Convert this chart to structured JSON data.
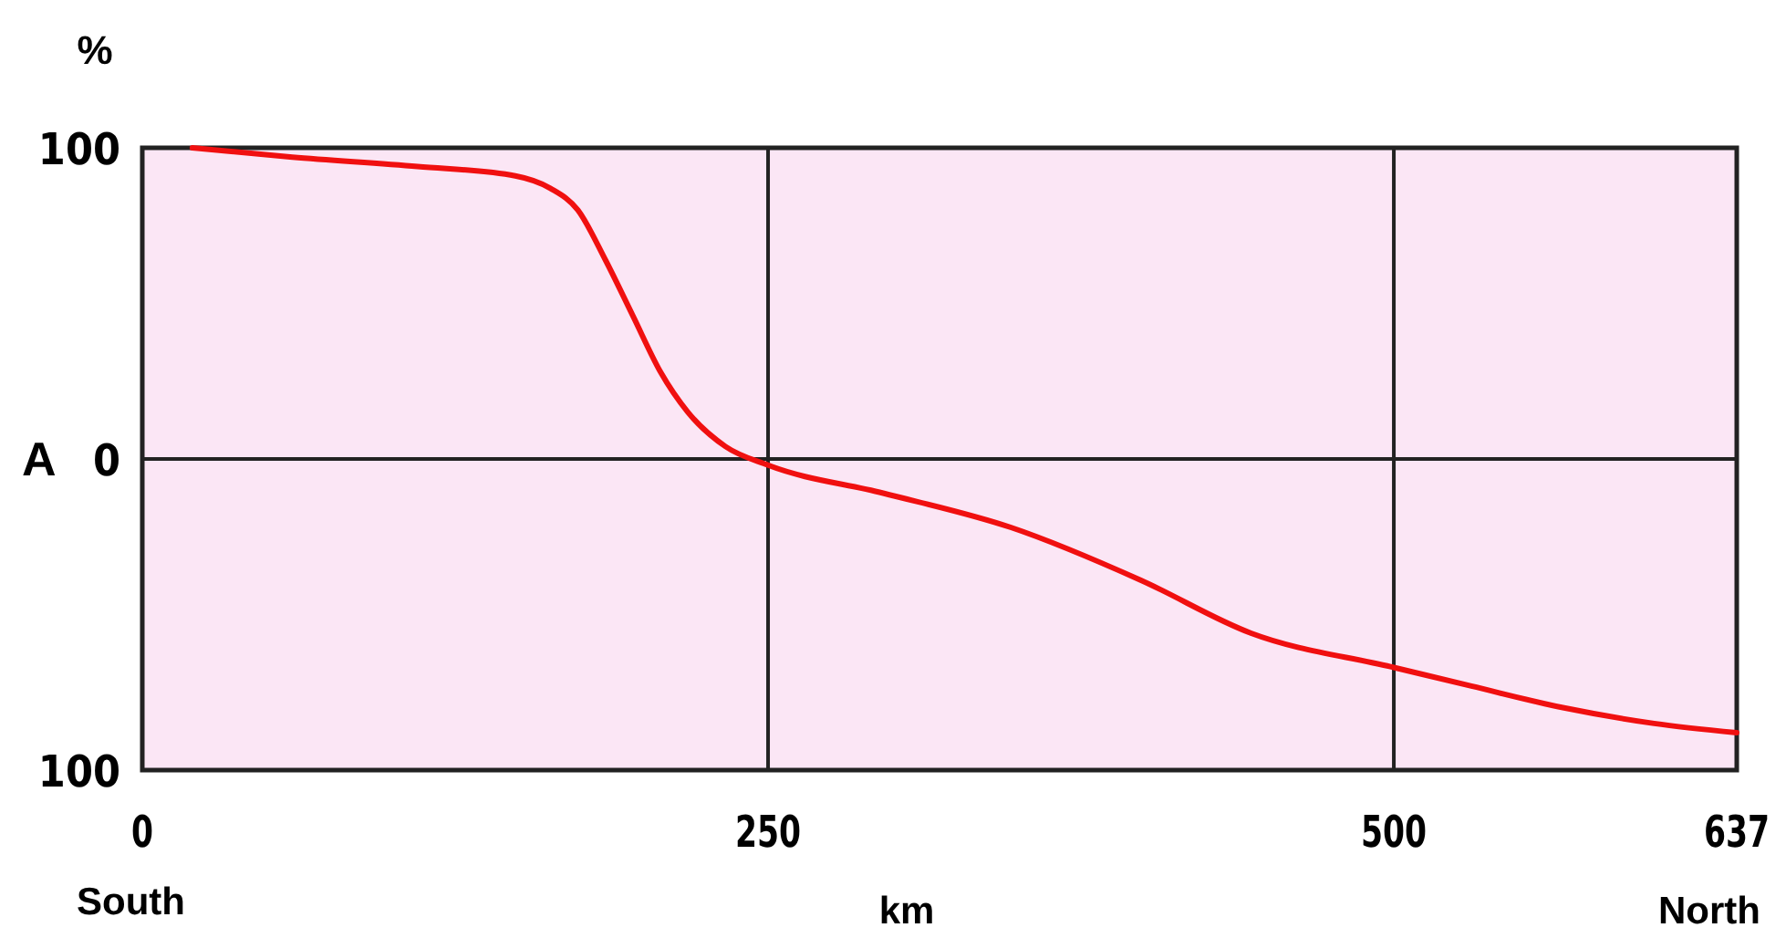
{
  "chart_data": {
    "type": "line",
    "xlabel": "km",
    "ylabel": "%",
    "annotations": [
      "A",
      "South",
      "North"
    ],
    "xlim": [
      0,
      637
    ],
    "xticks": [
      0,
      250,
      500,
      637
    ],
    "ylim": [
      -100,
      100
    ],
    "yticks": [
      {
        "value": 100,
        "label": "100"
      },
      0,
      {
        "value": -100,
        "label": "100"
      }
    ],
    "grid": true,
    "marker": "none",
    "series": [
      {
        "color": "#f01010",
        "x": [
          20,
          60,
          110,
          149,
          163,
          174,
          185,
          196,
          207,
          218,
          233,
          250,
          296,
          347,
          399,
          443,
          500,
          531,
          568,
          604,
          637
        ],
        "values": [
          100,
          97,
          94,
          91,
          87,
          80,
          64,
          46,
          28,
          15,
          4,
          -2,
          -11,
          -22,
          -39,
          -56,
          -67,
          -73,
          -80,
          -85,
          -88
        ]
      }
    ]
  }
}
